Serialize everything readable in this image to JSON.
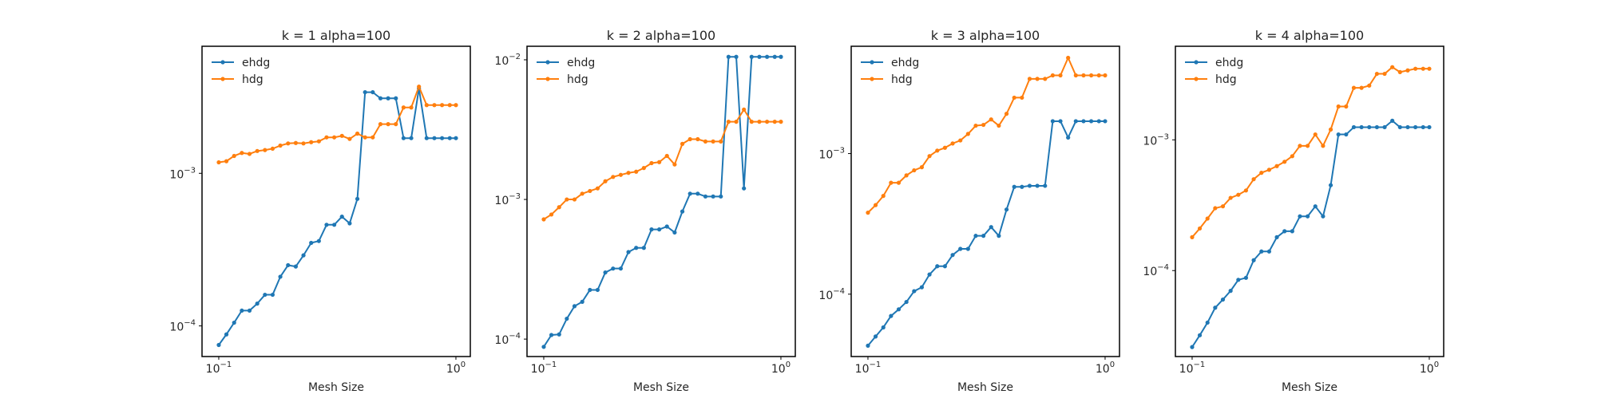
{
  "figure": {
    "background": "#ffffff"
  },
  "colors": {
    "ehdg": "#1f77b4",
    "hdg": "#ff7f0e",
    "axes": "#000000",
    "text": "#262626"
  },
  "chart_data": [
    {
      "type": "line",
      "title": "k = 1 alpha=100",
      "xlabel": "Mesh Size",
      "ylabel": "",
      "xscale": "log",
      "yscale": "log",
      "xlim": [
        0.085,
        1.15
      ],
      "ylim": [
        6.3e-05,
        0.0068
      ],
      "xticks": [
        {
          "value": 0.1,
          "base": "10",
          "exp": "−1"
        },
        {
          "value": 1,
          "base": "10",
          "exp": "0"
        }
      ],
      "yticks": [
        {
          "value": 0.0001,
          "base": "10",
          "exp": "−4"
        },
        {
          "value": 0.001,
          "base": "10",
          "exp": "−3"
        }
      ],
      "grid": false,
      "legend": "upper left",
      "x": [
        0.1,
        0.1077,
        0.1161,
        0.1251,
        0.1348,
        0.1453,
        0.1566,
        0.1687,
        0.1818,
        0.196,
        0.2112,
        0.2276,
        0.2453,
        0.2643,
        0.2848,
        0.3069,
        0.3307,
        0.3564,
        0.3841,
        0.4139,
        0.446,
        0.4806,
        0.5179,
        0.5581,
        0.6014,
        0.6481,
        0.6984,
        0.7526,
        0.8111,
        0.874,
        0.9419,
        1.0
      ],
      "series": [
        {
          "name": "ehdg",
          "color": "#1f77b4",
          "values": [
            7.5e-05,
            8.8e-05,
            0.000105,
            0.000126,
            0.000126,
            0.00014,
            0.00016,
            0.00016,
            0.00021,
            0.00025,
            0.000245,
            0.00029,
            0.00035,
            0.00036,
            0.00046,
            0.00046,
            0.00052,
            0.00047,
            0.00068,
            0.0034,
            0.0034,
            0.0031,
            0.0031,
            0.0031,
            0.0017,
            0.0017,
            0.0036,
            0.0017,
            0.0017,
            0.0017,
            0.0017,
            0.0017
          ]
        },
        {
          "name": "hdg",
          "color": "#ff7f0e",
          "values": [
            0.00118,
            0.0012,
            0.0013,
            0.00136,
            0.00134,
            0.0014,
            0.00142,
            0.00145,
            0.00152,
            0.00157,
            0.00158,
            0.00157,
            0.0016,
            0.00162,
            0.00172,
            0.00172,
            0.00176,
            0.00168,
            0.00182,
            0.00172,
            0.00172,
            0.0021,
            0.0021,
            0.0021,
            0.0027,
            0.0027,
            0.0037,
            0.0028,
            0.0028,
            0.0028,
            0.0028,
            0.0028
          ]
        }
      ]
    },
    {
      "type": "line",
      "title": "k = 2 alpha=100",
      "xlabel": "Mesh Size",
      "ylabel": "",
      "xscale": "log",
      "yscale": "log",
      "xlim": [
        0.085,
        1.15
      ],
      "ylim": [
        7.5e-05,
        0.0125
      ],
      "xticks": [
        {
          "value": 0.1,
          "base": "10",
          "exp": "−1"
        },
        {
          "value": 1,
          "base": "10",
          "exp": "0"
        }
      ],
      "yticks": [
        {
          "value": 0.0001,
          "base": "10",
          "exp": "−4"
        },
        {
          "value": 0.001,
          "base": "10",
          "exp": "−3"
        },
        {
          "value": 0.01,
          "base": "10",
          "exp": "−2"
        }
      ],
      "grid": false,
      "legend": "upper left",
      "x": [
        0.1,
        0.1077,
        0.1161,
        0.1251,
        0.1348,
        0.1453,
        0.1566,
        0.1687,
        0.1818,
        0.196,
        0.2112,
        0.2276,
        0.2453,
        0.2643,
        0.2848,
        0.3069,
        0.3307,
        0.3564,
        0.3841,
        0.4139,
        0.446,
        0.4806,
        0.5179,
        0.5581,
        0.6014,
        0.6481,
        0.6984,
        0.7526,
        0.8111,
        0.874,
        0.9419,
        1.0
      ],
      "series": [
        {
          "name": "ehdg",
          "color": "#1f77b4",
          "values": [
            8.8e-05,
            0.000107,
            0.000108,
            0.00014,
            0.000172,
            0.000185,
            0.000225,
            0.000225,
            0.0003,
            0.00032,
            0.00032,
            0.00042,
            0.00045,
            0.00045,
            0.00061,
            0.00061,
            0.00064,
            0.00058,
            0.00082,
            0.0011,
            0.0011,
            0.00105,
            0.00105,
            0.00105,
            0.0105,
            0.0105,
            0.0012,
            0.0105,
            0.0105,
            0.0105,
            0.0105,
            0.0105
          ]
        },
        {
          "name": "hdg",
          "color": "#ff7f0e",
          "values": [
            0.00072,
            0.00078,
            0.00088,
            0.001,
            0.001,
            0.0011,
            0.00115,
            0.0012,
            0.00135,
            0.00145,
            0.0015,
            0.00155,
            0.00158,
            0.00168,
            0.00182,
            0.00185,
            0.00205,
            0.00178,
            0.0025,
            0.0027,
            0.0027,
            0.0026,
            0.0026,
            0.0026,
            0.0036,
            0.0036,
            0.0044,
            0.0036,
            0.0036,
            0.0036,
            0.0036,
            0.0036
          ]
        }
      ]
    },
    {
      "type": "line",
      "title": "k = 3 alpha=100",
      "xlabel": "Mesh Size",
      "ylabel": "",
      "xscale": "log",
      "yscale": "log",
      "xlim": [
        0.085,
        1.15
      ],
      "ylim": [
        3.6e-05,
        0.0058
      ],
      "xticks": [
        {
          "value": 0.1,
          "base": "10",
          "exp": "−1"
        },
        {
          "value": 1,
          "base": "10",
          "exp": "0"
        }
      ],
      "yticks": [
        {
          "value": 0.0001,
          "base": "10",
          "exp": "−4"
        },
        {
          "value": 0.001,
          "base": "10",
          "exp": "−3"
        }
      ],
      "grid": false,
      "legend": "upper left",
      "x": [
        0.1,
        0.1077,
        0.1161,
        0.1251,
        0.1348,
        0.1453,
        0.1566,
        0.1687,
        0.1818,
        0.196,
        0.2112,
        0.2276,
        0.2453,
        0.2643,
        0.2848,
        0.3069,
        0.3307,
        0.3564,
        0.3841,
        0.4139,
        0.446,
        0.4806,
        0.5179,
        0.5581,
        0.6014,
        0.6481,
        0.6984,
        0.7526,
        0.8111,
        0.874,
        0.9419,
        1.0
      ],
      "series": [
        {
          "name": "ehdg",
          "color": "#1f77b4",
          "values": [
            4.3e-05,
            5e-05,
            5.8e-05,
            7e-05,
            7.8e-05,
            8.8e-05,
            0.000105,
            0.000112,
            0.000138,
            0.000158,
            0.000158,
            0.00019,
            0.00021,
            0.00021,
            0.00026,
            0.00026,
            0.0003,
            0.00026,
            0.0004,
            0.00058,
            0.00058,
            0.00059,
            0.00059,
            0.00059,
            0.0017,
            0.0017,
            0.0013,
            0.0017,
            0.0017,
            0.0017,
            0.0017,
            0.0017
          ]
        },
        {
          "name": "hdg",
          "color": "#ff7f0e",
          "values": [
            0.00038,
            0.00043,
            0.0005,
            0.00062,
            0.00062,
            0.0007,
            0.00076,
            0.0008,
            0.00096,
            0.00105,
            0.0011,
            0.00118,
            0.00124,
            0.00138,
            0.00158,
            0.0016,
            0.00175,
            0.00158,
            0.00192,
            0.0025,
            0.0025,
            0.0034,
            0.0034,
            0.0034,
            0.0036,
            0.0036,
            0.0048,
            0.0036,
            0.0036,
            0.0036,
            0.0036,
            0.0036
          ]
        }
      ]
    },
    {
      "type": "line",
      "title": "k = 4 alpha=100",
      "xlabel": "Mesh Size",
      "ylabel": "",
      "xscale": "log",
      "yscale": "log",
      "xlim": [
        0.085,
        1.15
      ],
      "ylim": [
        2.2e-05,
        0.0052
      ],
      "xticks": [
        {
          "value": 0.1,
          "base": "10",
          "exp": "−1"
        },
        {
          "value": 1,
          "base": "10",
          "exp": "0"
        }
      ],
      "yticks": [
        {
          "value": 0.0001,
          "base": "10",
          "exp": "−4"
        },
        {
          "value": 0.001,
          "base": "10",
          "exp": "−3"
        }
      ],
      "grid": false,
      "legend": "upper left",
      "x": [
        0.1,
        0.1077,
        0.1161,
        0.1251,
        0.1348,
        0.1453,
        0.1566,
        0.1687,
        0.1818,
        0.196,
        0.2112,
        0.2276,
        0.2453,
        0.2643,
        0.2848,
        0.3069,
        0.3307,
        0.3564,
        0.3841,
        0.4139,
        0.446,
        0.4806,
        0.5179,
        0.5581,
        0.6014,
        0.6481,
        0.6984,
        0.7526,
        0.8111,
        0.874,
        0.9419,
        1.0
      ],
      "series": [
        {
          "name": "ehdg",
          "color": "#1f77b4",
          "values": [
            2.6e-05,
            3.2e-05,
            4e-05,
            5.2e-05,
            6e-05,
            7e-05,
            8.5e-05,
            8.8e-05,
            0.00012,
            0.00014,
            0.00014,
            0.00018,
            0.0002,
            0.0002,
            0.00026,
            0.00026,
            0.00031,
            0.00026,
            0.00045,
            0.0011,
            0.0011,
            0.00125,
            0.00125,
            0.00125,
            0.00125,
            0.00125,
            0.0014,
            0.00125,
            0.00125,
            0.00125,
            0.00125,
            0.00125
          ]
        },
        {
          "name": "hdg",
          "color": "#ff7f0e",
          "values": [
            0.00018,
            0.00021,
            0.00025,
            0.0003,
            0.00031,
            0.00036,
            0.00038,
            0.00041,
            0.0005,
            0.00056,
            0.00059,
            0.00063,
            0.00068,
            0.00075,
            0.0009,
            0.0009,
            0.0011,
            0.0009,
            0.0012,
            0.0018,
            0.0018,
            0.0025,
            0.0025,
            0.0026,
            0.0032,
            0.0032,
            0.0036,
            0.0033,
            0.0034,
            0.0035,
            0.0035,
            0.0035
          ]
        }
      ]
    }
  ]
}
